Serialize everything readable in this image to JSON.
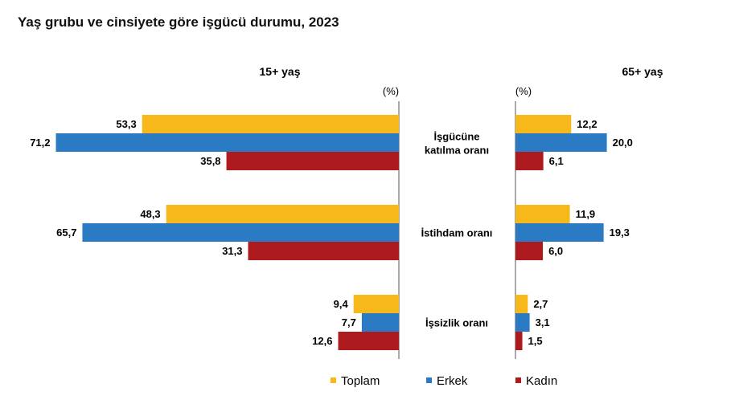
{
  "chart_data": {
    "type": "bar",
    "orientation": "horizontal",
    "title": "Yaş grubu ve cinsiyete göre işgücü durumu, 2023",
    "unit": "(%)",
    "categories": [
      [
        "İşgücüne",
        "katılma oranı"
      ],
      [
        "İstihdam oranı"
      ],
      [
        "İşsizlik oranı"
      ]
    ],
    "series_meta": [
      {
        "name": "Toplam",
        "color": "#F6B81A"
      },
      {
        "name": "Erkek",
        "color": "#2A7BC4"
      },
      {
        "name": "Kadın",
        "color": "#AD1B1F"
      }
    ],
    "panels": [
      {
        "title": "15+ yaş",
        "xlim": [
          0,
          75
        ],
        "series": [
          {
            "name": "Toplam",
            "values": [
              53.3,
              48.3,
              9.4
            ],
            "labels": [
              "53,3",
              "48,3",
              "9,4"
            ]
          },
          {
            "name": "Erkek",
            "values": [
              71.2,
              65.7,
              7.7
            ],
            "labels": [
              "71,2",
              "65,7",
              "7,7"
            ]
          },
          {
            "name": "Kadın",
            "values": [
              35.8,
              31.3,
              12.6
            ],
            "labels": [
              "35,8",
              "31,3",
              "12,6"
            ]
          }
        ]
      },
      {
        "title": "65+ yaş",
        "xlim": [
          0,
          26
        ],
        "series": [
          {
            "name": "Toplam",
            "values": [
              12.2,
              11.9,
              2.7
            ],
            "labels": [
              "12,2",
              "11,9",
              "2,7"
            ]
          },
          {
            "name": "Erkek",
            "values": [
              20.0,
              19.3,
              3.1
            ],
            "labels": [
              "20,0",
              "19,3",
              "3,1"
            ]
          },
          {
            "name": "Kadın",
            "values": [
              6.1,
              6.0,
              1.5
            ],
            "labels": [
              "6,1",
              "6,0",
              "1,5"
            ]
          }
        ]
      }
    ],
    "legend": [
      "Toplam",
      "Erkek",
      "Kadın"
    ],
    "legend_position": "bottom",
    "grid": false
  }
}
